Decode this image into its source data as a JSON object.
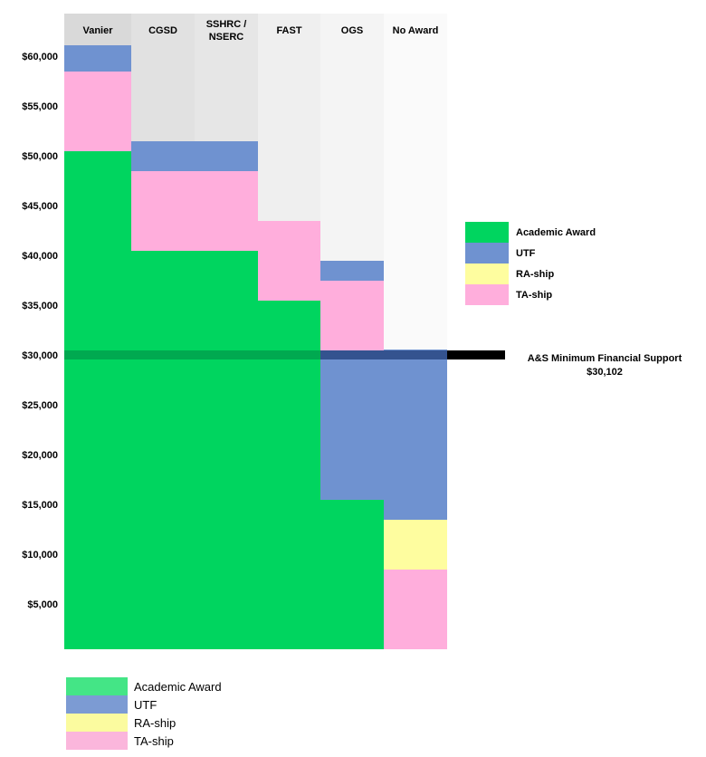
{
  "chart_data": {
    "type": "bar",
    "stacked": true,
    "title": "",
    "xlabel": "",
    "ylabel": "",
    "categories": [
      "Vanier",
      "CGSD",
      "SSHRC / NSERC",
      "FAST",
      "OGS",
      "No Award"
    ],
    "series": [
      "Academic Award",
      "UTF",
      "RA-ship",
      "TA-ship"
    ],
    "columns": [
      {
        "category": "Vanier",
        "total": 60600,
        "segments": [
          {
            "name": "Academic Award",
            "value": 50000
          },
          {
            "name": "TA-ship",
            "value": 8000
          },
          {
            "name": "UTF",
            "value": 2600
          }
        ]
      },
      {
        "category": "CGSD",
        "total": 51000,
        "segments": [
          {
            "name": "Academic Award",
            "value": 40000
          },
          {
            "name": "TA-ship",
            "value": 8000
          },
          {
            "name": "UTF",
            "value": 3000
          }
        ]
      },
      {
        "category": "SSHRC / NSERC",
        "total": 51000,
        "segments": [
          {
            "name": "Academic Award",
            "value": 40000
          },
          {
            "name": "TA-ship",
            "value": 8000
          },
          {
            "name": "UTF",
            "value": 3000
          }
        ]
      },
      {
        "category": "FAST",
        "total": 43000,
        "segments": [
          {
            "name": "Academic Award",
            "value": 35000
          },
          {
            "name": "TA-ship",
            "value": 8000
          }
        ]
      },
      {
        "category": "OGS",
        "total": 39000,
        "segments": [
          {
            "name": "Academic Award",
            "value": 15000
          },
          {
            "name": "UTF",
            "value": 15000
          },
          {
            "name": "TA-ship",
            "value": 7000
          },
          {
            "name": "UTF",
            "value": 2000
          }
        ]
      },
      {
        "category": "No Award",
        "total": 30102,
        "segments": [
          {
            "name": "TA-ship",
            "value": 8000
          },
          {
            "name": "RA-ship",
            "value": 5000
          },
          {
            "name": "UTF",
            "value": 17102
          }
        ]
      }
    ],
    "yticks": [
      {
        "label": "$60,000",
        "value": 60000
      },
      {
        "label": "$55,000",
        "value": 55000
      },
      {
        "label": "$50,000",
        "value": 50000
      },
      {
        "label": "$45,000",
        "value": 45000
      },
      {
        "label": "$40,000",
        "value": 40000
      },
      {
        "label": "$35,000",
        "value": 35000
      },
      {
        "label": "$30,000",
        "value": 30000
      },
      {
        "label": "$25,000",
        "value": 25000
      },
      {
        "label": "$20,000",
        "value": 20000
      },
      {
        "label": "$15,000",
        "value": 15000
      },
      {
        "label": "$10,000",
        "value": 10000
      },
      {
        "label": "$5,000",
        "value": 5000
      }
    ],
    "ylim": [
      0,
      64000
    ],
    "grid": false,
    "legend_position": "right-and-bottom",
    "reference_line": {
      "value": 30102,
      "label": "A&S Minimum Financial Support",
      "value_label": "$30,102"
    }
  },
  "colors": {
    "series": {
      "Academic Award": "#00D55F",
      "UTF": "#6F92D0",
      "RA-ship": "#FEFD9F",
      "TA-ship": "#FFAEDC"
    },
    "column_backgrounds": [
      "#D9D9D9",
      "#E1E1E1",
      "#E6E6E6",
      "#EFEFEF",
      "#F4F4F4",
      "#FAFAFA"
    ],
    "stripe_over_green": "#00A950",
    "stripe_over_blue": "#34538F",
    "stripe_black": "#000000",
    "legend_bottom_series": {
      "Academic Award": "#44E586",
      "UTF": "#7C9BD3",
      "RA-ship": "#FBFB9F",
      "TA-ship": "#FBB6DC"
    }
  },
  "legend_right": {
    "items": [
      "Academic Award",
      "UTF",
      "RA-ship",
      "TA-ship"
    ]
  },
  "legend_bottom": {
    "items": [
      "Academic Award",
      "UTF",
      "RA-ship",
      "TA-ship"
    ]
  },
  "annotation": {
    "line1": "A&S Minimum Financial Support",
    "line2": "$30,102"
  }
}
